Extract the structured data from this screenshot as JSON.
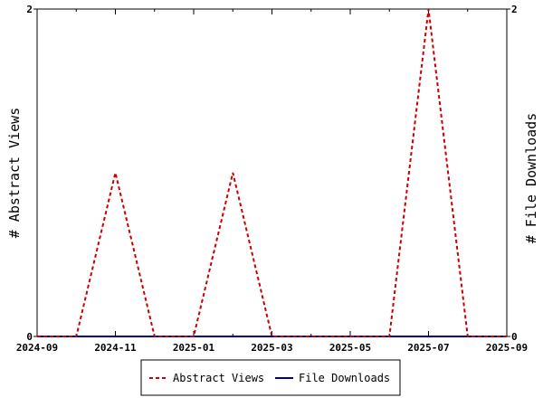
{
  "chart_data": {
    "type": "line",
    "x": [
      "2024-09",
      "2024-10",
      "2024-11",
      "2024-12",
      "2025-01",
      "2025-02",
      "2025-03",
      "2025-04",
      "2025-05",
      "2025-06",
      "2025-07",
      "2025-08",
      "2025-09"
    ],
    "series": [
      {
        "name": "Abstract Views",
        "axis": "left",
        "color": "#cc0000",
        "dash": "dashed",
        "values": [
          0,
          0,
          1,
          0,
          0,
          1,
          0,
          0,
          0,
          0,
          2,
          0,
          0
        ]
      },
      {
        "name": "File Downloads",
        "axis": "right",
        "color": "#000099",
        "dash": "solid",
        "values": [
          0,
          0,
          0,
          0,
          0,
          0,
          0,
          0,
          0,
          0,
          0,
          0,
          0
        ]
      }
    ],
    "xticks": [
      "2024-09",
      "2024-11",
      "2025-01",
      "2025-03",
      "2025-05",
      "2025-07",
      "2025-09"
    ],
    "ylabel": "# Abstract Views",
    "y2label": "# File Downloads",
    "ylim": [
      0,
      2
    ],
    "y2lim": [
      0,
      2
    ],
    "yticks": [
      "0",
      "2"
    ],
    "y2ticks": [
      "0",
      "2"
    ],
    "grid": false,
    "legend_position": "bottom-center"
  }
}
